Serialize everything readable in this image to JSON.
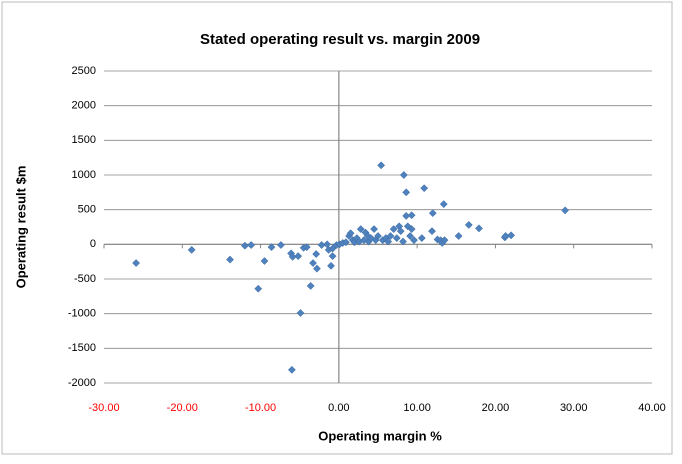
{
  "chart_data": {
    "type": "scatter",
    "title": "Stated operating result vs. margin 2009",
    "x_label": "Operating margin %",
    "y_label": "Operating result $m",
    "color": "#4f81bd",
    "negative_tick_color": "#ff0000",
    "grid": true,
    "xlim": [
      -30,
      40
    ],
    "ylim": [
      -2000,
      2500
    ],
    "xticks": [
      {
        "value": -30,
        "label": "-30.00"
      },
      {
        "value": -20,
        "label": "-20.00"
      },
      {
        "value": -10,
        "label": "-10.00"
      },
      {
        "value": 0,
        "label": "0.00"
      },
      {
        "value": 10,
        "label": "10.00"
      },
      {
        "value": 20,
        "label": "20.00"
      },
      {
        "value": 30,
        "label": "30.00"
      },
      {
        "value": 40,
        "label": "40.00"
      }
    ],
    "yticks": [
      -2000,
      -1500,
      -1000,
      -500,
      0,
      500,
      1000,
      1500,
      2000,
      2500
    ],
    "x": [
      -25.9,
      -18.8,
      -13.9,
      -12,
      -11.2,
      -10.3,
      -9.5,
      -8.6,
      -7.4,
      -6.1,
      -5.9,
      -5.2,
      -6,
      -4.9,
      -4.5,
      -4.1,
      -3.6,
      -3.3,
      -2.9,
      -2.8,
      -2.2,
      -1.5,
      -1.3,
      -1.0,
      -0.8,
      -0.8,
      -0.3,
      0.1,
      0.5,
      0.9,
      1.3,
      1.5,
      1.8,
      2,
      2.3,
      2.6,
      2.8,
      3.2,
      3.4,
      3.7,
      3.8,
      4.1,
      4.5,
      4.7,
      5,
      5.4,
      5.6,
      6,
      6.3,
      6.6,
      7,
      7.4,
      7.7,
      7.9,
      8.2,
      8.3,
      8.6,
      8.6,
      8.8,
      9.1,
      9.3,
      9.3,
      9.6,
      10.9,
      10.6,
      11.9,
      12,
      12.6,
      13,
      13.2,
      13.4,
      13.5,
      15.3,
      16.6,
      17.9,
      21.2,
      21.3,
      22,
      28.9
    ],
    "values": [
      -270,
      -80,
      -220,
      -20,
      -10,
      -640,
      -240,
      -40,
      -10,
      -130,
      -180,
      -170,
      -1810,
      -990,
      -50,
      -40,
      -600,
      -270,
      -140,
      -350,
      -10,
      0,
      -80,
      -310,
      -170,
      -60,
      -10,
      0,
      20,
      30,
      120,
      160,
      60,
      30,
      90,
      40,
      220,
      60,
      170,
      120,
      40,
      90,
      220,
      60,
      120,
      1140,
      60,
      90,
      40,
      120,
      220,
      90,
      260,
      190,
      40,
      1000,
      750,
      410,
      260,
      120,
      420,
      220,
      60,
      810,
      90,
      190,
      450,
      70,
      60,
      20,
      580,
      60,
      120,
      280,
      230,
      100,
      120,
      130,
      490
    ]
  }
}
